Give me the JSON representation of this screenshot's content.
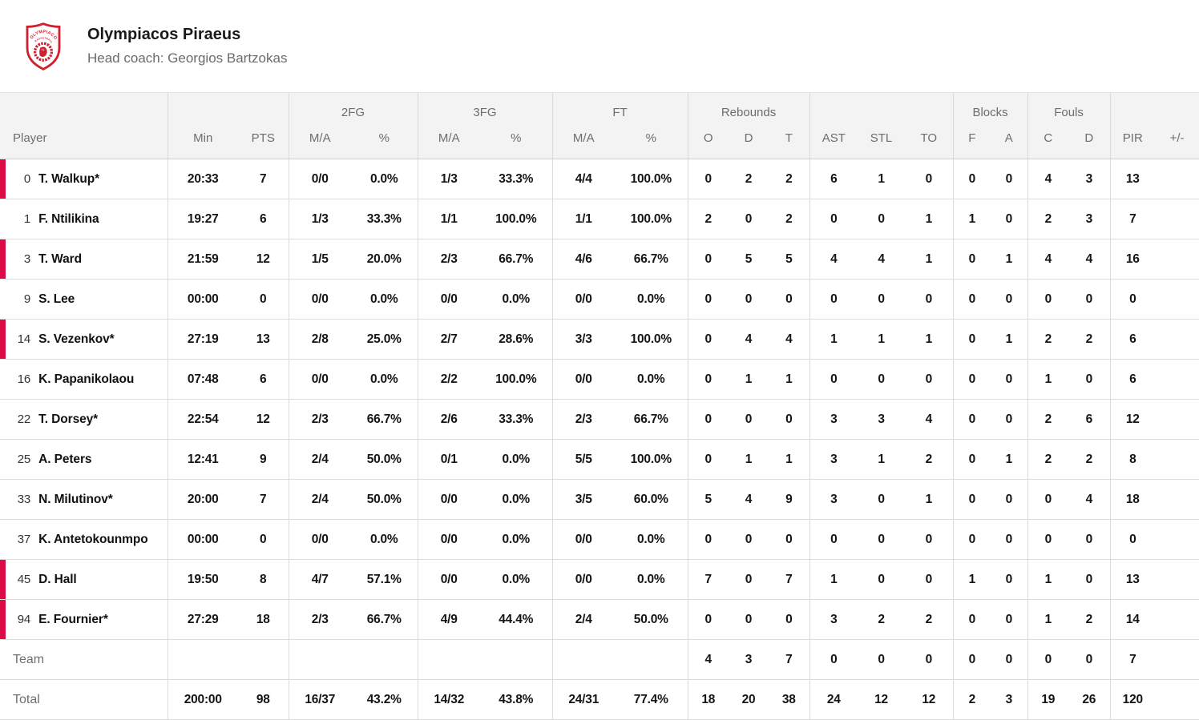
{
  "team": {
    "name": "Olympiacos Piraeus",
    "coach": "Head coach: Georgios Bartzokas",
    "logo_text_top": "OLYMPIACOS",
    "logo_text_bottom": "BASKETBALL"
  },
  "colors": {
    "accent_red": "#dc0a46",
    "logo_red": "#d0202e"
  },
  "table": {
    "groups": {
      "fg2": "2FG",
      "fg3": "3FG",
      "ft": "FT",
      "rebounds": "Rebounds",
      "blocks": "Blocks",
      "fouls": "Fouls"
    },
    "columns": {
      "player": "Player",
      "min": "Min",
      "pts": "PTS",
      "ma": "M/A",
      "pct": "%",
      "o": "O",
      "d": "D",
      "t": "T",
      "ast": "AST",
      "stl": "STL",
      "to": "TO",
      "f": "F",
      "a": "A",
      "c": "C",
      "pir": "PIR",
      "plus_minus": "+/-"
    },
    "stat_keys": [
      "min",
      "pts",
      "fg2_ma",
      "fg2_pct",
      "fg3_ma",
      "fg3_pct",
      "ft_ma",
      "ft_pct",
      "reb_o",
      "reb_d",
      "reb_t",
      "ast",
      "stl",
      "to",
      "blk_f",
      "blk_a",
      "foul_c",
      "foul_d",
      "pir",
      "plus_minus"
    ],
    "rows": [
      {
        "number": "0",
        "name": "T. Walkup*",
        "on_court": true,
        "stats": [
          "20:33",
          "7",
          "0/0",
          "0.0%",
          "1/3",
          "33.3%",
          "4/4",
          "100.0%",
          "0",
          "2",
          "2",
          "6",
          "1",
          "0",
          "0",
          "0",
          "4",
          "3",
          "13",
          ""
        ]
      },
      {
        "number": "1",
        "name": "F. Ntilikina",
        "on_court": false,
        "stats": [
          "19:27",
          "6",
          "1/3",
          "33.3%",
          "1/1",
          "100.0%",
          "1/1",
          "100.0%",
          "2",
          "0",
          "2",
          "0",
          "0",
          "1",
          "1",
          "0",
          "2",
          "3",
          "7",
          ""
        ]
      },
      {
        "number": "3",
        "name": "T. Ward",
        "on_court": true,
        "stats": [
          "21:59",
          "12",
          "1/5",
          "20.0%",
          "2/3",
          "66.7%",
          "4/6",
          "66.7%",
          "0",
          "5",
          "5",
          "4",
          "4",
          "1",
          "0",
          "1",
          "4",
          "4",
          "16",
          ""
        ]
      },
      {
        "number": "9",
        "name": "S. Lee",
        "on_court": false,
        "stats": [
          "00:00",
          "0",
          "0/0",
          "0.0%",
          "0/0",
          "0.0%",
          "0/0",
          "0.0%",
          "0",
          "0",
          "0",
          "0",
          "0",
          "0",
          "0",
          "0",
          "0",
          "0",
          "0",
          ""
        ]
      },
      {
        "number": "14",
        "name": "S. Vezenkov*",
        "on_court": true,
        "stats": [
          "27:19",
          "13",
          "2/8",
          "25.0%",
          "2/7",
          "28.6%",
          "3/3",
          "100.0%",
          "0",
          "4",
          "4",
          "1",
          "1",
          "1",
          "0",
          "1",
          "2",
          "2",
          "6",
          ""
        ]
      },
      {
        "number": "16",
        "name": "K. Papanikolaou",
        "on_court": false,
        "stats": [
          "07:48",
          "6",
          "0/0",
          "0.0%",
          "2/2",
          "100.0%",
          "0/0",
          "0.0%",
          "0",
          "1",
          "1",
          "0",
          "0",
          "0",
          "0",
          "0",
          "1",
          "0",
          "6",
          ""
        ]
      },
      {
        "number": "22",
        "name": "T. Dorsey*",
        "on_court": false,
        "stats": [
          "22:54",
          "12",
          "2/3",
          "66.7%",
          "2/6",
          "33.3%",
          "2/3",
          "66.7%",
          "0",
          "0",
          "0",
          "3",
          "3",
          "4",
          "0",
          "0",
          "2",
          "6",
          "12",
          ""
        ]
      },
      {
        "number": "25",
        "name": "A. Peters",
        "on_court": false,
        "stats": [
          "12:41",
          "9",
          "2/4",
          "50.0%",
          "0/1",
          "0.0%",
          "5/5",
          "100.0%",
          "0",
          "1",
          "1",
          "3",
          "1",
          "2",
          "0",
          "1",
          "2",
          "2",
          "8",
          ""
        ]
      },
      {
        "number": "33",
        "name": "N. Milutinov*",
        "on_court": false,
        "stats": [
          "20:00",
          "7",
          "2/4",
          "50.0%",
          "0/0",
          "0.0%",
          "3/5",
          "60.0%",
          "5",
          "4",
          "9",
          "3",
          "0",
          "1",
          "0",
          "0",
          "0",
          "4",
          "18",
          ""
        ]
      },
      {
        "number": "37",
        "name": "K. Antetokounmpo",
        "on_court": false,
        "stats": [
          "00:00",
          "0",
          "0/0",
          "0.0%",
          "0/0",
          "0.0%",
          "0/0",
          "0.0%",
          "0",
          "0",
          "0",
          "0",
          "0",
          "0",
          "0",
          "0",
          "0",
          "0",
          "0",
          ""
        ]
      },
      {
        "number": "45",
        "name": "D. Hall",
        "on_court": true,
        "stats": [
          "19:50",
          "8",
          "4/7",
          "57.1%",
          "0/0",
          "0.0%",
          "0/0",
          "0.0%",
          "7",
          "0",
          "7",
          "1",
          "0",
          "0",
          "1",
          "0",
          "1",
          "0",
          "13",
          ""
        ]
      },
      {
        "number": "94",
        "name": "E. Fournier*",
        "on_court": true,
        "stats": [
          "27:29",
          "18",
          "2/3",
          "66.7%",
          "4/9",
          "44.4%",
          "2/4",
          "50.0%",
          "0",
          "0",
          "0",
          "3",
          "2",
          "2",
          "0",
          "0",
          "1",
          "2",
          "14",
          ""
        ]
      }
    ],
    "team_row": {
      "label": "Team",
      "stats": [
        "",
        "",
        "",
        "",
        "",
        "",
        "",
        "",
        "4",
        "3",
        "7",
        "0",
        "0",
        "0",
        "0",
        "0",
        "0",
        "0",
        "7",
        ""
      ]
    },
    "total_row": {
      "label": "Total",
      "stats": [
        "200:00",
        "98",
        "16/37",
        "43.2%",
        "14/32",
        "43.8%",
        "24/31",
        "77.4%",
        "18",
        "20",
        "38",
        "24",
        "12",
        "12",
        "2",
        "3",
        "19",
        "26",
        "120",
        ""
      ]
    }
  }
}
